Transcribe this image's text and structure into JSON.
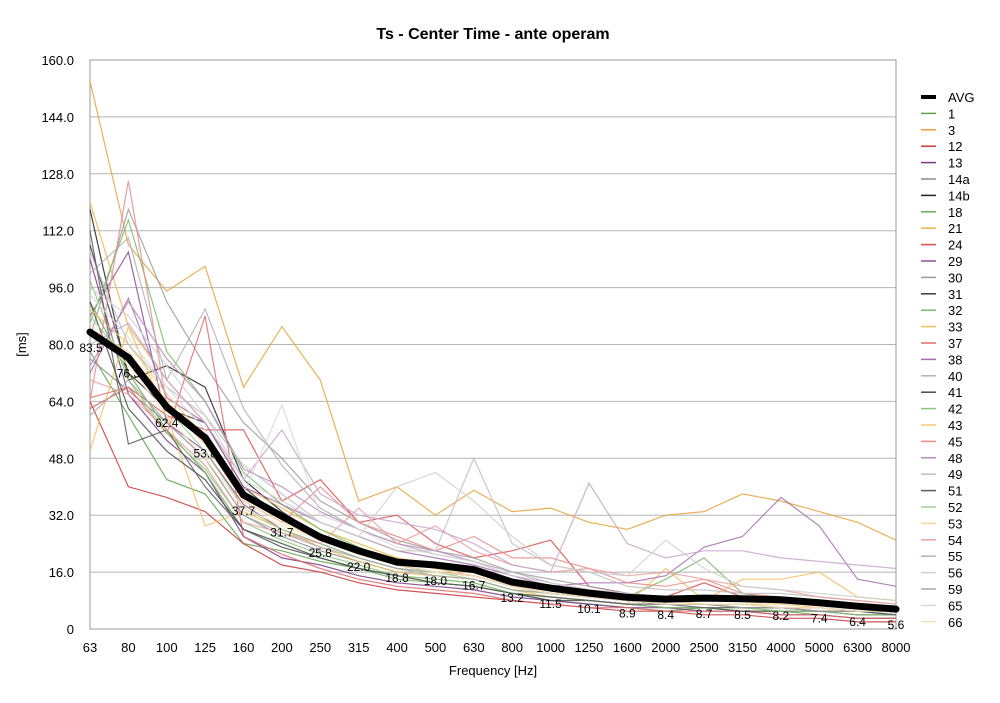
{
  "chart_data": {
    "type": "line",
    "title": "Ts - Center Time - ante operam",
    "xlabel": "Frequency [Hz]",
    "ylabel": "[ms]",
    "ylim": [
      0,
      160
    ],
    "yticks": [
      "0",
      "16.0",
      "32.0",
      "48.0",
      "64.0",
      "80.0",
      "96.0",
      "112.0",
      "128.0",
      "144.0",
      "160.0"
    ],
    "categories": [
      "63",
      "80",
      "100",
      "125",
      "160",
      "200",
      "250",
      "315",
      "400",
      "500",
      "630",
      "800",
      "1000",
      "1250",
      "1600",
      "2000",
      "2500",
      "3150",
      "4000",
      "5000",
      "6300",
      "8000"
    ],
    "grid": "horizontal",
    "legend_position": "right",
    "series": [
      {
        "name": "AVG",
        "color": "#000000",
        "values": [
          83.5,
          76.3,
          62.4,
          53.8,
          37.7,
          31.7,
          25.8,
          22.0,
          18.8,
          18.0,
          16.7,
          13.2,
          11.5,
          10.1,
          8.9,
          8.4,
          8.7,
          8.5,
          8.2,
          7.4,
          6.4,
          5.6
        ],
        "labels": [
          "83.5",
          "76.3",
          "62.4",
          "53.8",
          "37.7",
          "31.7",
          "25.8",
          "22.0",
          "18.8",
          "18.0",
          "16.7",
          "13.2",
          "11.5",
          "10.1",
          "8.9",
          "8.4",
          "8.7",
          "8.5",
          "8.2",
          "7.4",
          "6.4",
          "5.6"
        ]
      },
      {
        "name": "1",
        "color": "#5aa64a",
        "values": [
          78,
          60,
          42,
          38,
          24,
          22,
          19,
          17,
          15,
          14,
          13,
          10,
          8,
          7,
          6,
          5,
          6,
          5,
          5,
          4,
          3,
          3
        ]
      },
      {
        "name": "3",
        "color": "#e8a23a",
        "values": [
          154,
          108,
          95,
          102,
          68,
          85,
          70,
          36,
          40,
          32,
          39,
          33,
          34,
          30,
          28,
          32,
          33,
          38,
          36,
          33,
          30,
          25
        ]
      },
      {
        "name": "12",
        "color": "#c8383c",
        "values": [
          64,
          40,
          37,
          33,
          24,
          18,
          16,
          13,
          11,
          10,
          9,
          8,
          7,
          6,
          5,
          5,
          4,
          4,
          3,
          3,
          2,
          2
        ]
      },
      {
        "name": "13",
        "color": "#7a3a84",
        "values": [
          104,
          66,
          53,
          44,
          26,
          20,
          18,
          15,
          13,
          12,
          11,
          9,
          8,
          7,
          6,
          6,
          5,
          5,
          4,
          4,
          3,
          3
        ]
      },
      {
        "name": "14a",
        "color": "#8a8a8a",
        "values": [
          76,
          67,
          58,
          48,
          32,
          26,
          22,
          19,
          16,
          15,
          14,
          11,
          10,
          9,
          8,
          7,
          7,
          7,
          6,
          6,
          5,
          5
        ]
      },
      {
        "name": "14b",
        "color": "#222222",
        "values": [
          118,
          70,
          74,
          68,
          42,
          33,
          26,
          22,
          18,
          16,
          15,
          12,
          10,
          9,
          8,
          7,
          7,
          6,
          6,
          5,
          5,
          4
        ]
      },
      {
        "name": "18",
        "color": "#6aaf58",
        "values": [
          92,
          72,
          56,
          44,
          28,
          24,
          20,
          17,
          14,
          13,
          12,
          10,
          9,
          8,
          7,
          6,
          6,
          6,
          5,
          5,
          4,
          4
        ]
      },
      {
        "name": "21",
        "color": "#f0b54a",
        "values": [
          120,
          85,
          70,
          58,
          40,
          34,
          28,
          24,
          20,
          18,
          16,
          13,
          11,
          10,
          9,
          9,
          9,
          8,
          8,
          7,
          6,
          6
        ]
      },
      {
        "name": "24",
        "color": "#d9514e",
        "values": [
          62,
          68,
          60,
          56,
          56,
          36,
          42,
          30,
          32,
          24,
          20,
          22,
          25,
          12,
          10,
          9,
          13,
          9,
          8,
          7,
          6,
          5
        ]
      },
      {
        "name": "29",
        "color": "#8e4f96",
        "values": [
          88,
          106,
          58,
          50,
          35,
          28,
          24,
          20,
          17,
          16,
          15,
          12,
          10,
          9,
          8,
          7,
          7,
          7,
          6,
          6,
          5,
          5
        ]
      },
      {
        "name": "30",
        "color": "#9c9c9c",
        "values": [
          82,
          118,
          92,
          74,
          58,
          48,
          36,
          30,
          25,
          22,
          20,
          16,
          14,
          12,
          10,
          9,
          9,
          8,
          8,
          7,
          6,
          6
        ]
      },
      {
        "name": "31",
        "color": "#3a3a3a",
        "values": [
          108,
          72,
          62,
          58,
          40,
          31,
          25,
          21,
          18,
          16,
          15,
          12,
          10,
          9,
          8,
          7,
          7,
          7,
          6,
          6,
          5,
          5
        ]
      },
      {
        "name": "32",
        "color": "#7dbb6a",
        "values": [
          86,
          115,
          78,
          64,
          44,
          35,
          28,
          23,
          19,
          17,
          16,
          13,
          11,
          10,
          9,
          14,
          20,
          10,
          8,
          7,
          6,
          6
        ]
      },
      {
        "name": "33",
        "color": "#f2c060",
        "values": [
          50,
          85,
          60,
          29,
          33,
          28,
          23,
          19,
          16,
          15,
          14,
          11,
          9,
          8,
          7,
          17,
          8,
          14,
          14,
          16,
          9,
          8
        ]
      },
      {
        "name": "37",
        "color": "#e06a6a",
        "values": [
          65,
          68,
          55,
          88,
          26,
          21,
          17,
          14,
          12,
          11,
          10,
          8,
          7,
          6,
          6,
          5,
          5,
          5,
          4,
          4,
          3,
          3
        ]
      },
      {
        "name": "38",
        "color": "#a86cb0",
        "values": [
          72,
          93,
          65,
          58,
          40,
          35,
          30,
          26,
          22,
          20,
          18,
          15,
          12,
          13,
          13,
          15,
          23,
          26,
          37,
          29,
          14,
          12
        ]
      },
      {
        "name": "40",
        "color": "#b0b0b0",
        "values": [
          100,
          110,
          70,
          90,
          62,
          46,
          34,
          28,
          24,
          21,
          19,
          16,
          13,
          11,
          10,
          9,
          9,
          8,
          8,
          7,
          7,
          6
        ]
      },
      {
        "name": "41",
        "color": "#4a4a4a",
        "values": [
          92,
          62,
          50,
          42,
          28,
          23,
          20,
          17,
          15,
          13,
          12,
          10,
          8,
          8,
          7,
          6,
          6,
          5,
          5,
          5,
          4,
          4
        ]
      },
      {
        "name": "42",
        "color": "#8cc77a",
        "values": [
          98,
          70,
          55,
          45,
          30,
          25,
          21,
          18,
          15,
          14,
          13,
          10,
          9,
          8,
          7,
          6,
          6,
          6,
          5,
          5,
          4,
          4
        ]
      },
      {
        "name": "43",
        "color": "#f5c878",
        "values": [
          90,
          80,
          66,
          54,
          38,
          31,
          26,
          22,
          19,
          17,
          15,
          12,
          10,
          9,
          8,
          8,
          7,
          7,
          7,
          6,
          5,
          5
        ]
      },
      {
        "name": "45",
        "color": "#e88c8c",
        "values": [
          64,
          126,
          63,
          52,
          36,
          30,
          40,
          30,
          26,
          22,
          26,
          20,
          20,
          17,
          13,
          12,
          14,
          10,
          9,
          8,
          7,
          6
        ]
      },
      {
        "name": "48",
        "color": "#b98cc0",
        "values": [
          74,
          92,
          76,
          64,
          45,
          40,
          33,
          28,
          24,
          22,
          19,
          15,
          13,
          11,
          10,
          9,
          9,
          8,
          8,
          7,
          6,
          6
        ]
      },
      {
        "name": "49",
        "color": "#c0c0c0",
        "values": [
          106,
          80,
          68,
          60,
          46,
          38,
          30,
          26,
          22,
          22,
          48,
          24,
          18,
          16,
          12,
          11,
          11,
          10,
          10,
          9,
          8,
          7
        ]
      },
      {
        "name": "51",
        "color": "#5c5c5c",
        "values": [
          112,
          52,
          56,
          40,
          28,
          24,
          20,
          17,
          15,
          13,
          12,
          10,
          9,
          8,
          7,
          7,
          6,
          6,
          6,
          5,
          5,
          4
        ]
      },
      {
        "name": "52",
        "color": "#a0d090",
        "values": [
          88,
          75,
          62,
          50,
          34,
          28,
          24,
          20,
          17,
          16,
          14,
          11,
          10,
          9,
          8,
          7,
          7,
          7,
          6,
          6,
          5,
          5
        ]
      },
      {
        "name": "53",
        "color": "#f8d598",
        "values": [
          84,
          78,
          64,
          52,
          36,
          30,
          25,
          21,
          18,
          16,
          15,
          12,
          10,
          9,
          8,
          8,
          7,
          7,
          6,
          6,
          5,
          5
        ]
      },
      {
        "name": "54",
        "color": "#eaa0a0",
        "values": [
          70,
          66,
          56,
          46,
          30,
          27,
          24,
          34,
          24,
          29,
          22,
          18,
          16,
          17,
          15,
          16,
          14,
          12,
          11,
          9,
          8,
          7
        ]
      },
      {
        "name": "55",
        "color": "#c8a4cc",
        "values": [
          80,
          86,
          70,
          58,
          42,
          56,
          38,
          32,
          30,
          28,
          24,
          18,
          16,
          41,
          24,
          20,
          22,
          22,
          20,
          19,
          18,
          17
        ]
      },
      {
        "name": "56",
        "color": "#cfcfcf",
        "values": [
          96,
          88,
          74,
          60,
          42,
          36,
          30,
          26,
          40,
          44,
          36,
          26,
          18,
          16,
          15,
          25,
          17,
          12,
          11,
          10,
          9,
          8
        ]
      },
      {
        "name": "59",
        "color": "#a8a8a8",
        "values": [
          60,
          70,
          58,
          48,
          32,
          27,
          23,
          20,
          17,
          15,
          14,
          11,
          10,
          9,
          8,
          7,
          7,
          6,
          6,
          5,
          5,
          5
        ]
      },
      {
        "name": "65",
        "color": "#d8d8d8",
        "values": [
          94,
          82,
          68,
          56,
          38,
          63,
          32,
          28,
          23,
          21,
          19,
          15,
          13,
          11,
          10,
          9,
          9,
          8,
          8,
          7,
          6,
          6
        ]
      },
      {
        "name": "66",
        "color": "#fae0b8",
        "values": [
          86,
          74,
          60,
          48,
          34,
          29,
          25,
          21,
          18,
          16,
          15,
          12,
          10,
          9,
          8,
          7,
          7,
          7,
          6,
          6,
          5,
          5
        ]
      }
    ]
  }
}
